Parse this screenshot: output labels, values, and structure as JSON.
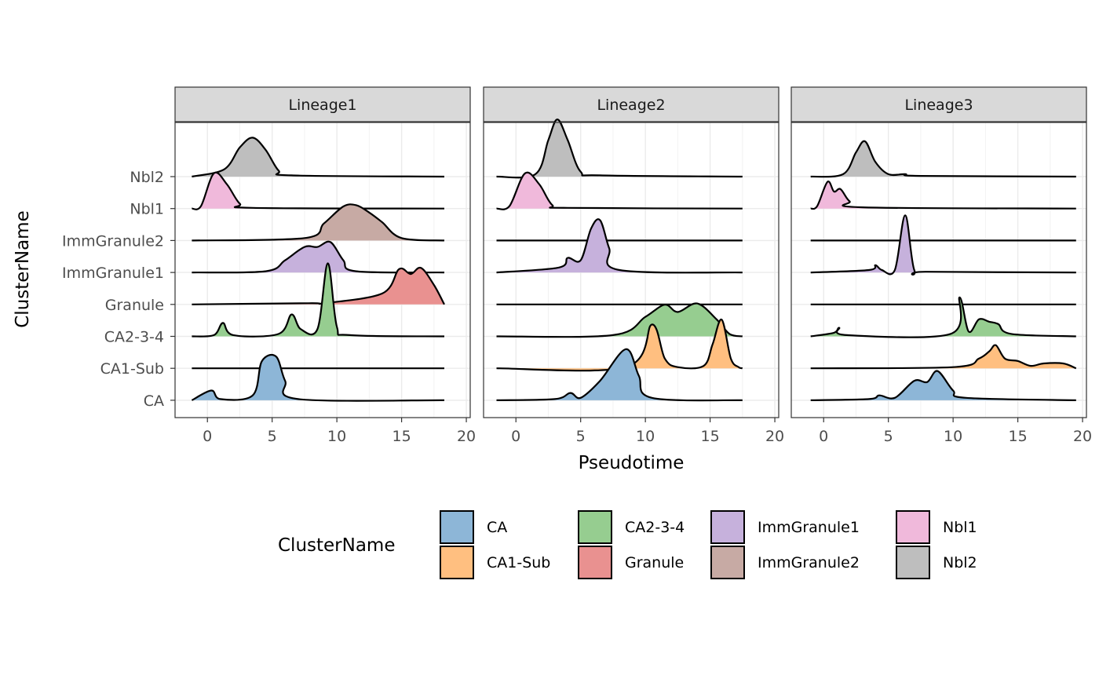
{
  "chart_data": {
    "type": "ridgeline",
    "xlabel": "Pseudotime",
    "ylabel": "ClusterName",
    "xlim": [
      -2.5,
      20.3
    ],
    "xticks": [
      0,
      5,
      10,
      15,
      20
    ],
    "grid": true,
    "legend": {
      "title": "ClusterName",
      "position": "bottom",
      "entries": [
        "CA",
        "CA1-Sub",
        "CA2-3-4",
        "Granule",
        "ImmGranule1",
        "ImmGranule2",
        "Nbl1",
        "Nbl2"
      ]
    },
    "categories": [
      "CA",
      "CA1-Sub",
      "CA2-3-4",
      "Granule",
      "ImmGranule1",
      "ImmGranule2",
      "Nbl1",
      "Nbl2"
    ],
    "colors": {
      "CA": "#8db6d7",
      "CA1-Sub": "#ffbf80",
      "CA2-3-4": "#96cd90",
      "Granule": "#e99190",
      "ImmGranule1": "#c6b1dc",
      "ImmGranule2": "#c7aaa4",
      "Nbl1": "#f0b9db",
      "Nbl2": "#bebebe"
    },
    "panels": [
      {
        "name": "Lineage1",
        "x_range": [
          -1.2,
          18.3
        ],
        "ridges": {
          "Nbl2": [
            [
              1.3,
              0.3
            ],
            [
              2.5,
              1.2
            ],
            [
              3.5,
              1.6
            ],
            [
              4.5,
              1.1
            ],
            [
              5.5,
              0.25
            ],
            [
              6.5,
              0.05
            ]
          ],
          "Nbl1": [
            [
              -0.5,
              0.1
            ],
            [
              0.5,
              1.45
            ],
            [
              1.5,
              1.0
            ],
            [
              2.5,
              0.2
            ],
            [
              3.5,
              0.03
            ]
          ],
          "ImmGranule2": [
            [
              7.5,
              0.1
            ],
            [
              9.0,
              0.7
            ],
            [
              10.5,
              1.4
            ],
            [
              11.5,
              1.45
            ],
            [
              12.5,
              1.15
            ],
            [
              13.5,
              0.75
            ],
            [
              15.0,
              0.1
            ]
          ],
          "ImmGranule1": [
            [
              4.5,
              0.05
            ],
            [
              6.0,
              0.5
            ],
            [
              7.5,
              1.05
            ],
            [
              8.5,
              1.05
            ],
            [
              9.5,
              1.25
            ],
            [
              10.5,
              0.5
            ],
            [
              11.5,
              0.05
            ]
          ],
          "Granule": [
            [
              7.8,
              0.05
            ],
            [
              9.0,
              0.05
            ],
            [
              13.5,
              0.45
            ],
            [
              14.8,
              1.45
            ],
            [
              15.7,
              1.25
            ],
            [
              16.5,
              1.5
            ],
            [
              17.5,
              0.8
            ],
            [
              18.3,
              0.05
            ]
          ],
          "CA2-3-4": [
            [
              0.5,
              0.05
            ],
            [
              1.2,
              0.55
            ],
            [
              2.0,
              0.05
            ],
            [
              5.5,
              0.1
            ],
            [
              6.5,
              0.9
            ],
            [
              7.2,
              0.3
            ],
            [
              8.5,
              0.3
            ],
            [
              9.3,
              3.0
            ],
            [
              10.0,
              0.4
            ],
            [
              11.0,
              0.05
            ]
          ],
          "CA": [
            [
              0.3,
              0.4
            ],
            [
              1.0,
              0.05
            ],
            [
              3.5,
              0.2
            ],
            [
              4.2,
              1.6
            ],
            [
              5.3,
              1.8
            ],
            [
              6.0,
              0.8
            ],
            [
              7.0,
              0.05
            ]
          ]
        }
      },
      {
        "name": "Lineage2",
        "x_range": [
          -1.5,
          17.5
        ],
        "ridges": {
          "Nbl2": [
            [
              1.5,
              0.1
            ],
            [
              2.5,
              1.5
            ],
            [
              3.2,
              2.35
            ],
            [
              4.0,
              1.5
            ],
            [
              5.0,
              0.2
            ],
            [
              6.5,
              0.05
            ]
          ],
          "Nbl1": [
            [
              -0.5,
              0.1
            ],
            [
              0.7,
              1.45
            ],
            [
              1.8,
              1.0
            ],
            [
              2.8,
              0.15
            ],
            [
              4.0,
              0.03
            ]
          ],
          "ImmGranule1": [
            [
              3.3,
              0.2
            ],
            [
              4.0,
              0.6
            ],
            [
              5.0,
              0.5
            ],
            [
              5.8,
              1.8
            ],
            [
              6.5,
              2.15
            ],
            [
              7.2,
              1.0
            ],
            [
              8.0,
              0.1
            ]
          ],
          "CA2-3-4": [
            [
              7.5,
              0.05
            ],
            [
              10.0,
              0.8
            ],
            [
              11.5,
              1.3
            ],
            [
              12.5,
              1.0
            ],
            [
              14.0,
              1.35
            ],
            [
              15.5,
              0.7
            ],
            [
              16.5,
              0.1
            ]
          ],
          "CA1-Sub": [
            [
              8.5,
              0.05
            ],
            [
              10.5,
              1.8
            ],
            [
              11.5,
              0.4
            ],
            [
              12.5,
              0.05
            ],
            [
              14.5,
              0.1
            ],
            [
              15.2,
              1.0
            ],
            [
              15.9,
              2.0
            ],
            [
              16.6,
              0.4
            ],
            [
              17.2,
              0.05
            ]
          ],
          "CA": [
            [
              3.0,
              0.05
            ],
            [
              4.2,
              0.3
            ],
            [
              5.0,
              0.1
            ],
            [
              6.5,
              0.8
            ],
            [
              8.5,
              2.1
            ],
            [
              9.5,
              1.0
            ],
            [
              10.5,
              0.1
            ]
          ]
        }
      },
      {
        "name": "Lineage3",
        "x_range": [
          -1.0,
          19.5
        ],
        "ridges": {
          "Nbl2": [
            [
              1.5,
              0.1
            ],
            [
              2.5,
              1.0
            ],
            [
              3.2,
              1.45
            ],
            [
              4.0,
              0.6
            ],
            [
              5.0,
              0.1
            ],
            [
              6.3,
              0.1
            ],
            [
              7.5,
              0.03
            ]
          ],
          "Nbl1": [
            [
              -0.5,
              0.1
            ],
            [
              0.3,
              1.1
            ],
            [
              0.8,
              0.7
            ],
            [
              1.3,
              0.8
            ],
            [
              2.0,
              0.3
            ],
            [
              3.0,
              0.05
            ]
          ],
          "ImmGranule1": [
            [
              3.5,
              0.1
            ],
            [
              4.0,
              0.3
            ],
            [
              4.5,
              0.1
            ],
            [
              5.5,
              0.1
            ],
            [
              6.3,
              2.35
            ],
            [
              7.0,
              0.1
            ],
            [
              8.0,
              0.03
            ]
          ],
          "CA2-3-4": [
            [
              0.8,
              0.15
            ],
            [
              1.2,
              0.35
            ],
            [
              1.8,
              0.05
            ],
            [
              9.8,
              0.1
            ],
            [
              10.5,
              1.6
            ],
            [
              11.2,
              0.2
            ],
            [
              12.0,
              0.7
            ],
            [
              12.8,
              0.6
            ],
            [
              13.5,
              0.5
            ],
            [
              14.5,
              0.1
            ]
          ],
          "CA1-Sub": [
            [
              10.0,
              0.05
            ],
            [
              12.0,
              0.4
            ],
            [
              12.8,
              0.7
            ],
            [
              13.3,
              0.95
            ],
            [
              14.0,
              0.4
            ],
            [
              15.0,
              0.3
            ],
            [
              16.0,
              0.1
            ],
            [
              17.0,
              0.2
            ],
            [
              18.5,
              0.2
            ],
            [
              19.5,
              0.03
            ]
          ],
          "CA": [
            [
              3.5,
              0.05
            ],
            [
              4.3,
              0.2
            ],
            [
              5.5,
              0.1
            ],
            [
              7.0,
              0.8
            ],
            [
              8.0,
              0.75
            ],
            [
              8.8,
              1.2
            ],
            [
              10.0,
              0.4
            ],
            [
              11.0,
              0.1
            ]
          ]
        }
      }
    ]
  }
}
